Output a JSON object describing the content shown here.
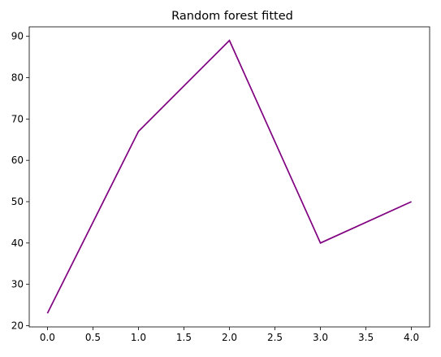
{
  "chart_data": {
    "type": "line",
    "title": "Random forest fitted",
    "xlabel": "",
    "ylabel": "",
    "x": [
      0,
      1,
      2,
      3,
      4
    ],
    "series": [
      {
        "values": [
          23,
          67,
          89,
          40,
          50
        ],
        "color": "#800080"
      }
    ],
    "xlim": [
      -0.2,
      4.2
    ],
    "ylim": [
      19.7,
      92.3
    ],
    "xticks": [
      0.0,
      0.5,
      1.0,
      1.5,
      2.0,
      2.5,
      3.0,
      3.5,
      4.0
    ],
    "xtick_labels": [
      "0.0",
      "0.5",
      "1.0",
      "1.5",
      "2.0",
      "2.5",
      "3.0",
      "3.5",
      "4.0"
    ],
    "yticks": [
      20,
      30,
      40,
      50,
      60,
      70,
      80,
      90
    ],
    "ytick_labels": [
      "20",
      "30",
      "40",
      "50",
      "60",
      "70",
      "80",
      "90"
    ],
    "grid": false,
    "legend": false
  }
}
